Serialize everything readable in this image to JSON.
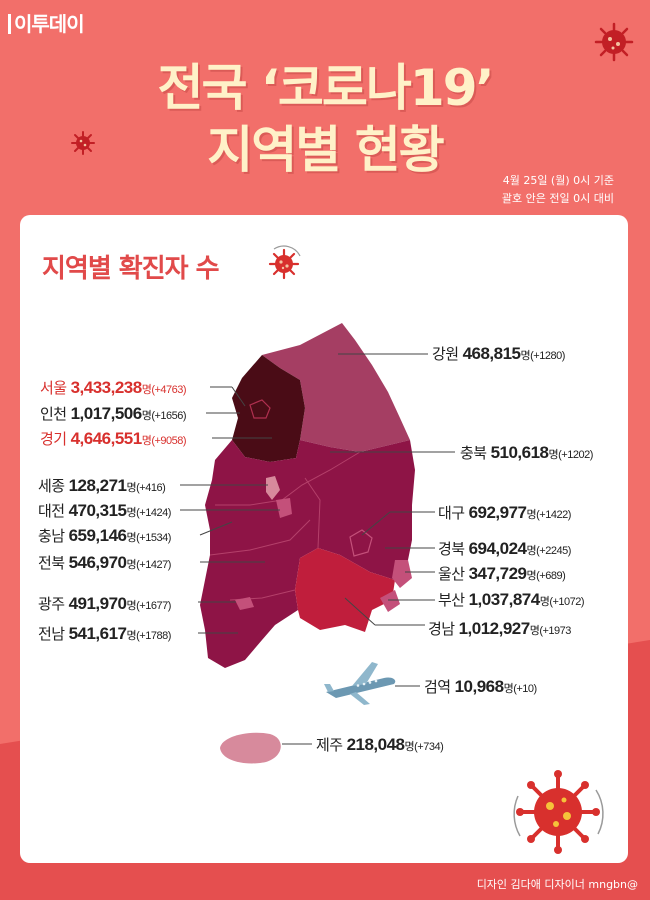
{
  "logo": "이투데이",
  "title": {
    "line1": "전국 ‘코로나19’",
    "line2": "지역별 현황"
  },
  "basis": {
    "line1": "4월 25일 (월) 0시 기준",
    "line2": "괄호 안은 전일 0시 대비"
  },
  "section_title": "지역별 확진자 수",
  "regions": [
    {
      "name": "서울",
      "count": "3,433,238",
      "unit": "명",
      "change": "(+4763)",
      "highlight": true
    },
    {
      "name": "인천",
      "count": "1,017,506",
      "unit": "명",
      "change": "(+1656)",
      "highlight": false
    },
    {
      "name": "경기",
      "count": "4,646,551",
      "unit": "명",
      "change": "(+9058)",
      "highlight": true
    },
    {
      "name": "세종",
      "count": "128,271",
      "unit": "명",
      "change": "(+416)",
      "highlight": false
    },
    {
      "name": "대전",
      "count": "470,315",
      "unit": "명",
      "change": "(+1424)",
      "highlight": false
    },
    {
      "name": "충남",
      "count": "659,146",
      "unit": "명",
      "change": "(+1534)",
      "highlight": false
    },
    {
      "name": "전북",
      "count": "546,970",
      "unit": "명",
      "change": "(+1427)",
      "highlight": false
    },
    {
      "name": "광주",
      "count": "491,970",
      "unit": "명",
      "change": "(+1677)",
      "highlight": false
    },
    {
      "name": "전남",
      "count": "541,617",
      "unit": "명",
      "change": "(+1788)",
      "highlight": false
    },
    {
      "name": "강원",
      "count": "468,815",
      "unit": "명",
      "change": "(+1280)",
      "highlight": false
    },
    {
      "name": "충북",
      "count": "510,618",
      "unit": "명",
      "change": "(+1202)",
      "highlight": false
    },
    {
      "name": "대구",
      "count": "692,977",
      "unit": "명",
      "change": "(+1422)",
      "highlight": false
    },
    {
      "name": "경북",
      "count": "694,024",
      "unit": "명",
      "change": "(+2245)",
      "highlight": false
    },
    {
      "name": "울산",
      "count": "347,729",
      "unit": "명",
      "change": "(+689)",
      "highlight": false
    },
    {
      "name": "부산",
      "count": "1,037,874",
      "unit": "명",
      "change": "(+1072)",
      "highlight": false
    },
    {
      "name": "경남",
      "count": "1,012,927",
      "unit": "명",
      "change": "(+1973",
      "highlight": false
    },
    {
      "name": "검역",
      "count": "10,968",
      "unit": "명",
      "change": "(+10)",
      "highlight": false
    },
    {
      "name": "제주",
      "count": "218,048",
      "unit": "명",
      "change": "(+734)",
      "highlight": false
    }
  ],
  "credit": "디자인 김다애 디자이너 mngbn@",
  "colors": {
    "background": "#f26f6a",
    "title": "#fff1c8",
    "accent_red": "#e14a4a",
    "seoul_gyeonggi": "#4a0c16",
    "gangwon": "#a53e63",
    "central": "#8e1446",
    "gyeongnam": "#c01e3c",
    "jeju": "#d78a9c"
  },
  "icons": [
    "coronavirus-icon",
    "airplane-icon"
  ]
}
